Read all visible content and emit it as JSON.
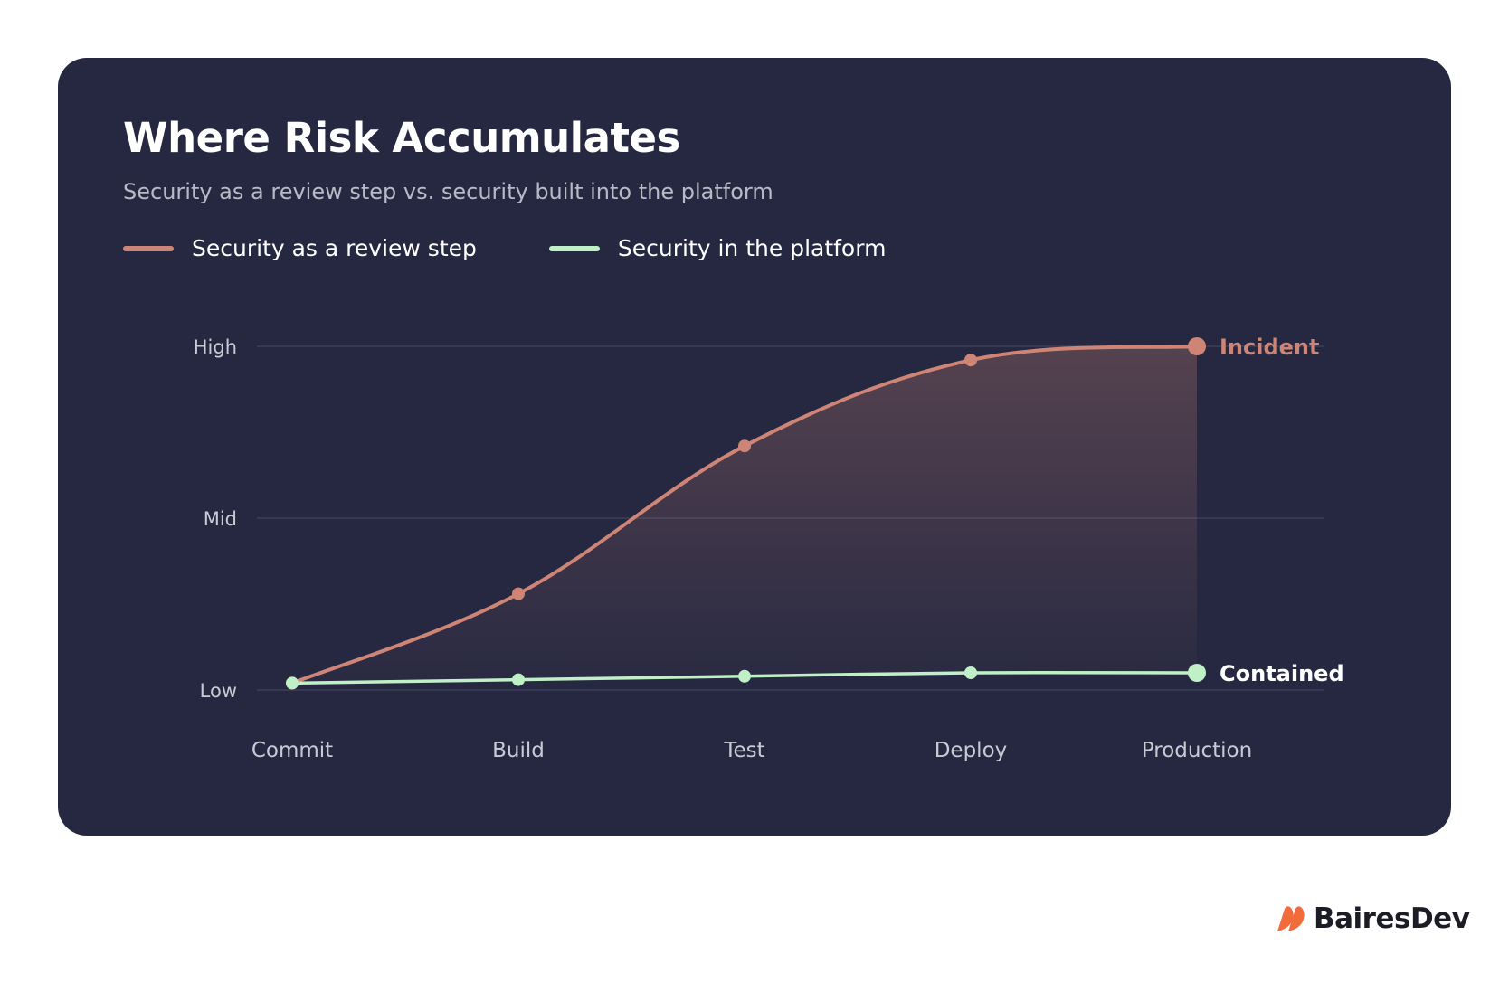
{
  "title": "Where Risk Accumulates",
  "subtitle": "Security as a review step vs. security built into the platform",
  "brand": {
    "name": "BairesDev",
    "icon": "bairesdev-logo-icon",
    "color": "#f26b3a"
  },
  "colors": {
    "background": "#ffffff",
    "card": "#262841",
    "grid": "#3d3f58",
    "review": "#cf8575",
    "platform": "#bff0c6",
    "axis_text": "#c9cad4"
  },
  "chart_data": {
    "type": "line",
    "categories": [
      "Commit",
      "Build",
      "Test",
      "Deploy",
      "Production"
    ],
    "y_tick_labels": [
      "Low",
      "Mid",
      "High"
    ],
    "ylim": [
      0,
      100
    ],
    "grid": true,
    "legend": "top-left",
    "series": [
      {
        "name": "Security as a review step",
        "values": [
          2,
          28,
          71,
          96,
          100
        ],
        "end_label": "Incident",
        "color": "#cf8575",
        "filled": true
      },
      {
        "name": "Security in the platform",
        "values": [
          2,
          3,
          4,
          5,
          5
        ],
        "end_label": "Contained",
        "color": "#bff0c6",
        "filled": false
      }
    ]
  }
}
